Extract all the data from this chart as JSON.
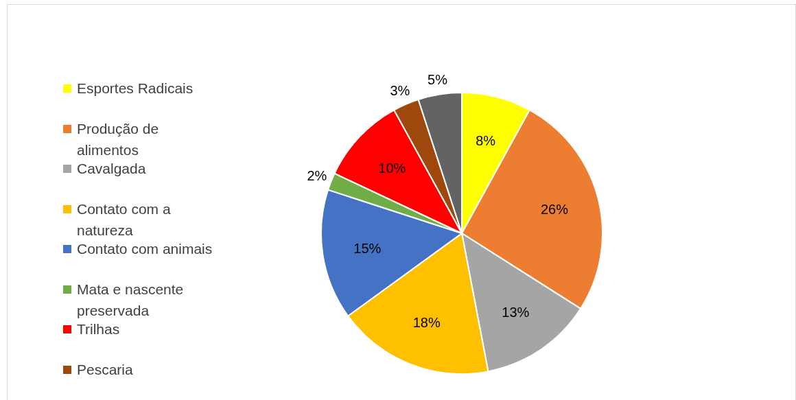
{
  "chart_data": {
    "type": "pie",
    "categories": [
      "Esportes Radicais",
      "Produção de alimentos",
      "Cavalgada",
      "Contato com a natureza",
      "Contato com animais",
      "Mata e nascente preservada",
      "Trilhas",
      "Pescaria",
      null
    ],
    "values": [
      8,
      26,
      13,
      18,
      15,
      2,
      10,
      3,
      5
    ],
    "colors": [
      "#ffff00",
      "#ed7d31",
      "#a5a5a5",
      "#ffc000",
      "#4472c4",
      "#70ad47",
      "#ff0000",
      "#9e480e",
      "#636363"
    ],
    "value_labels": [
      "8%",
      "26%",
      "13%",
      "18%",
      "15%",
      "2%",
      "10%",
      "3%",
      "5%"
    ],
    "legend": "left"
  }
}
